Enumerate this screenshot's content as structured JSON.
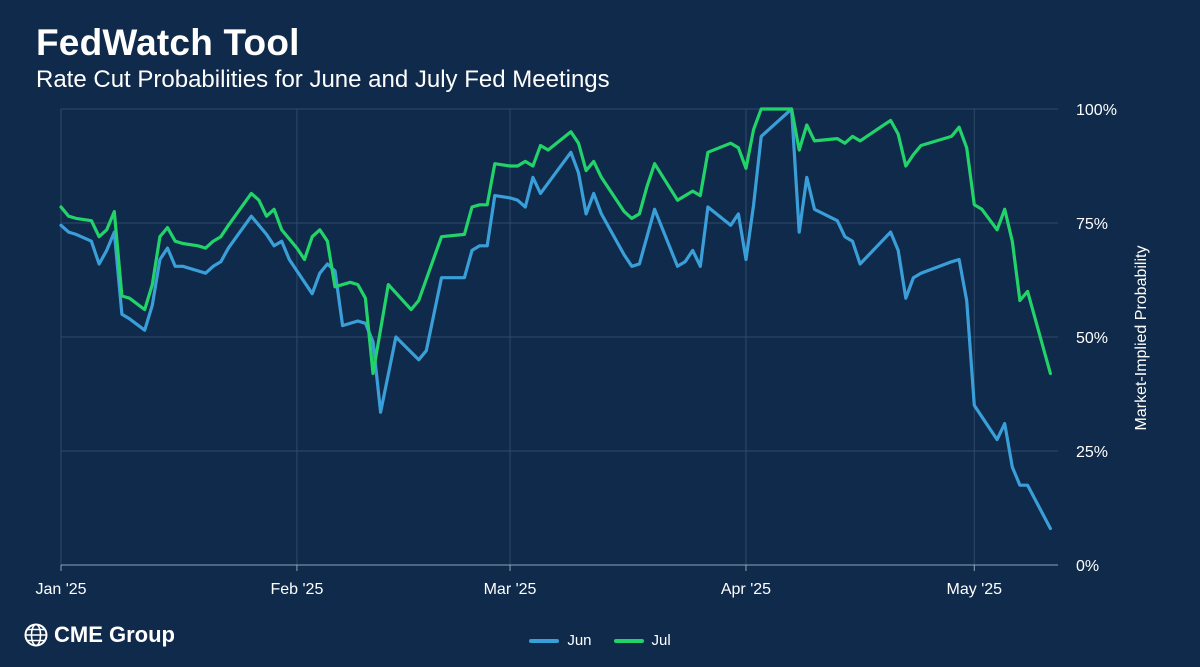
{
  "header": {
    "title": "FedWatch Tool",
    "subtitle": "Rate Cut Probabilities for June and July Fed Meetings"
  },
  "brand": {
    "logo_text": "CME Group",
    "logo_icon": "globe-icon"
  },
  "colors": {
    "background": "#0f2a4a",
    "grid": "#2f4a6a",
    "jun": "#3a9fd8",
    "jul": "#22d36a"
  },
  "legend": [
    {
      "name": "Jun",
      "color": "#3a9fd8"
    },
    {
      "name": "Jul",
      "color": "#22d36a"
    }
  ],
  "chart_data": {
    "type": "line",
    "title": "Rate Cut Probabilities for June and July Fed Meetings",
    "xlabel": "",
    "ylabel": "Market-Implied Probability",
    "ylim": [
      0,
      100
    ],
    "y_axis_side": "right",
    "y_ticks": [
      "0%",
      "25%",
      "50%",
      "75%",
      "100%"
    ],
    "x_ticks": [
      "Jan '25",
      "Feb '25",
      "Mar '25",
      "Apr '25",
      "May '25"
    ],
    "x_ticks_day": [
      0,
      31,
      59,
      90,
      120
    ],
    "x_range_days": [
      0,
      131
    ],
    "grid": true,
    "legend_position": "bottom-center",
    "series": [
      {
        "name": "Jun",
        "color": "#3a9fd8",
        "points": [
          [
            0,
            74.5
          ],
          [
            1,
            73
          ],
          [
            2,
            72.5
          ],
          [
            4,
            71
          ],
          [
            5,
            66
          ],
          [
            6,
            69
          ],
          [
            7,
            73
          ],
          [
            8,
            55
          ],
          [
            9,
            54
          ],
          [
            11,
            51.5
          ],
          [
            12,
            57
          ],
          [
            13,
            67
          ],
          [
            14,
            69.5
          ],
          [
            15,
            65.5
          ],
          [
            16,
            65.5
          ],
          [
            18,
            64.5
          ],
          [
            19,
            64
          ],
          [
            20,
            65.5
          ],
          [
            21,
            66.5
          ],
          [
            22,
            69.5
          ],
          [
            25,
            76.5
          ],
          [
            27,
            72.5
          ],
          [
            28,
            70
          ],
          [
            29,
            71
          ],
          [
            30,
            67
          ],
          [
            33,
            59.5
          ],
          [
            34,
            64
          ],
          [
            35,
            66
          ],
          [
            36,
            64.5
          ],
          [
            37,
            52.5
          ],
          [
            39,
            53.5
          ],
          [
            40,
            53
          ],
          [
            41,
            49
          ],
          [
            42,
            33.5
          ],
          [
            44,
            50
          ],
          [
            47,
            45
          ],
          [
            48,
            47
          ],
          [
            50,
            63
          ],
          [
            53,
            63
          ],
          [
            54,
            69
          ],
          [
            55,
            70
          ],
          [
            56,
            70
          ],
          [
            57,
            81
          ],
          [
            59,
            80.5
          ],
          [
            60,
            80
          ],
          [
            61,
            78.5
          ],
          [
            62,
            85
          ],
          [
            63,
            81.5
          ],
          [
            65,
            86
          ],
          [
            67,
            90.5
          ],
          [
            68,
            86
          ],
          [
            69,
            77
          ],
          [
            70,
            81.5
          ],
          [
            71,
            77
          ],
          [
            74,
            68
          ],
          [
            75,
            65.5
          ],
          [
            76,
            66
          ],
          [
            78,
            78
          ],
          [
            81,
            65.5
          ],
          [
            82,
            66.5
          ],
          [
            83,
            69
          ],
          [
            84,
            65.5
          ],
          [
            85,
            78.5
          ],
          [
            88,
            74.5
          ],
          [
            89,
            77
          ],
          [
            90,
            67
          ],
          [
            91,
            79
          ],
          [
            92,
            94
          ],
          [
            94,
            97
          ],
          [
            96,
            100
          ],
          [
            97,
            73
          ],
          [
            98,
            85
          ],
          [
            99,
            78
          ],
          [
            102,
            75.5
          ],
          [
            103,
            72
          ],
          [
            104,
            71
          ],
          [
            105,
            66
          ],
          [
            109,
            73
          ],
          [
            110,
            69
          ],
          [
            111,
            58.5
          ],
          [
            112,
            63
          ],
          [
            113,
            64
          ],
          [
            117,
            66.5
          ],
          [
            118,
            67
          ],
          [
            119,
            58
          ],
          [
            120,
            35
          ],
          [
            121,
            32.5
          ],
          [
            123,
            27.5
          ],
          [
            124,
            31
          ],
          [
            125,
            21.5
          ],
          [
            126,
            17.5
          ],
          [
            127,
            17.5
          ],
          [
            130,
            8
          ]
        ]
      },
      {
        "name": "Jul",
        "color": "#22d36a",
        "points": [
          [
            0,
            78.5
          ],
          [
            1,
            76.5
          ],
          [
            2,
            76
          ],
          [
            4,
            75.5
          ],
          [
            5,
            72
          ],
          [
            6,
            73.5
          ],
          [
            7,
            77.5
          ],
          [
            8,
            59
          ],
          [
            9,
            58.5
          ],
          [
            11,
            56
          ],
          [
            12,
            61.5
          ],
          [
            13,
            72
          ],
          [
            14,
            74
          ],
          [
            15,
            71
          ],
          [
            16,
            70.5
          ],
          [
            18,
            70
          ],
          [
            19,
            69.5
          ],
          [
            20,
            71
          ],
          [
            21,
            72
          ],
          [
            22,
            74.5
          ],
          [
            25,
            81.5
          ],
          [
            26,
            80
          ],
          [
            27,
            76.5
          ],
          [
            28,
            78
          ],
          [
            29,
            73.5
          ],
          [
            31,
            69.5
          ],
          [
            32,
            67
          ],
          [
            33,
            72
          ],
          [
            34,
            73.5
          ],
          [
            35,
            71
          ],
          [
            36,
            61
          ],
          [
            38,
            62
          ],
          [
            39,
            61.5
          ],
          [
            40,
            58.5
          ],
          [
            41,
            42
          ],
          [
            43,
            61.5
          ],
          [
            46,
            56
          ],
          [
            47,
            58
          ],
          [
            50,
            72
          ],
          [
            53,
            72.5
          ],
          [
            54,
            78.5
          ],
          [
            55,
            79
          ],
          [
            56,
            79
          ],
          [
            57,
            88
          ],
          [
            59,
            87.5
          ],
          [
            60,
            87.5
          ],
          [
            61,
            88.5
          ],
          [
            62,
            87.5
          ],
          [
            63,
            92
          ],
          [
            64,
            91
          ],
          [
            67,
            95
          ],
          [
            68,
            92.5
          ],
          [
            69,
            86.5
          ],
          [
            70,
            88.5
          ],
          [
            71,
            85
          ],
          [
            74,
            77.5
          ],
          [
            75,
            76
          ],
          [
            76,
            77
          ],
          [
            77,
            83
          ],
          [
            78,
            88
          ],
          [
            81,
            80
          ],
          [
            83,
            82
          ],
          [
            84,
            81
          ],
          [
            85,
            90.5
          ],
          [
            88,
            92.5
          ],
          [
            89,
            91.5
          ],
          [
            90,
            87
          ],
          [
            91,
            95.5
          ],
          [
            92,
            100
          ],
          [
            95,
            100
          ],
          [
            96,
            100
          ],
          [
            97,
            91
          ],
          [
            98,
            96.5
          ],
          [
            99,
            93
          ],
          [
            102,
            93.5
          ],
          [
            103,
            92.5
          ],
          [
            104,
            94
          ],
          [
            105,
            93
          ],
          [
            109,
            97.5
          ],
          [
            110,
            94.5
          ],
          [
            111,
            87.5
          ],
          [
            112,
            90
          ],
          [
            113,
            92
          ],
          [
            117,
            94
          ],
          [
            118,
            96
          ],
          [
            119,
            91.5
          ],
          [
            120,
            79
          ],
          [
            121,
            78
          ],
          [
            123,
            73.5
          ],
          [
            124,
            78
          ],
          [
            125,
            71
          ],
          [
            126,
            58
          ],
          [
            127,
            60
          ],
          [
            130,
            42
          ]
        ]
      }
    ]
  }
}
